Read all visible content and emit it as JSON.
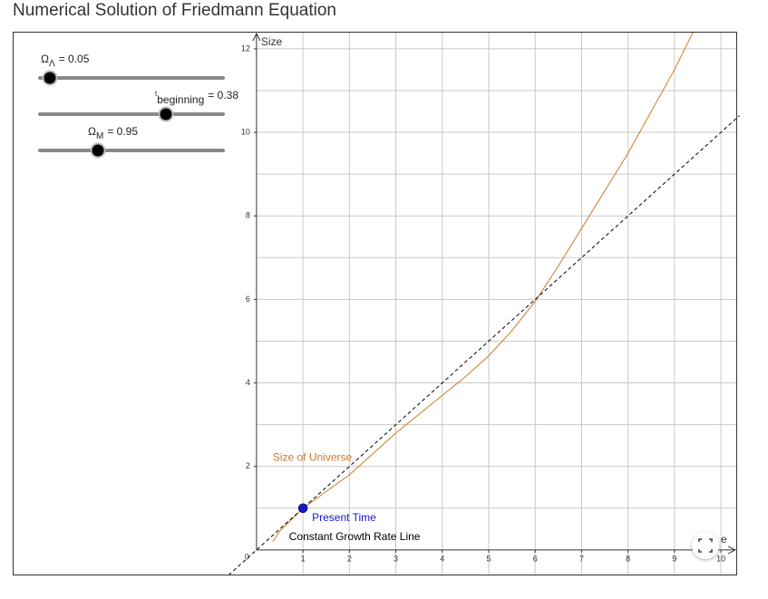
{
  "title": "Numerical Solution of Friedmann Equation",
  "sliders": [
    {
      "symbol": "Ω",
      "subscript": "Λ",
      "value_text": "= 0.05"
    },
    {
      "symbol": "t",
      "subscript": "beginning",
      "value_text": "= 0.38"
    },
    {
      "symbol": "Ω",
      "subscript": "M",
      "value_text": "= 0.95"
    }
  ],
  "chart_data": {
    "type": "line",
    "xlabel": "e",
    "ylabel": "Size",
    "origin_label": "0",
    "xlim": [
      -5.25,
      10.35
    ],
    "ylim": [
      -0.61,
      12.41
    ],
    "xticks": [
      1,
      2,
      3,
      4,
      5,
      6,
      7,
      8,
      9,
      10
    ],
    "yticks": [
      2,
      4,
      6,
      8,
      10,
      12
    ],
    "minor_yticks": [
      1,
      3,
      5,
      7,
      9,
      11
    ],
    "grid": true,
    "series": [
      {
        "name": "Size of Universe",
        "color": "#cc7a29",
        "dash": false,
        "x": [
          0.35,
          0.5,
          1,
          1.5,
          2,
          2.5,
          3,
          3.5,
          4,
          4.5,
          5,
          5.5,
          6,
          6.5,
          7,
          7.5,
          8,
          8.5,
          9,
          9.4
        ],
        "values": [
          0.2,
          0.45,
          1,
          1.4,
          1.8,
          2.3,
          2.8,
          3.25,
          3.7,
          4.15,
          4.65,
          5.25,
          5.95,
          6.8,
          7.7,
          8.6,
          9.5,
          10.5,
          11.5,
          12.4
        ],
        "label_at": [
          0.35,
          2.2
        ]
      },
      {
        "name": "Constant Growth Rate Line",
        "color": "#000000",
        "dash": true,
        "x": [
          -0.6,
          10.4
        ],
        "values": [
          -0.6,
          10.4
        ],
        "label_at": [
          0.7,
          0.3
        ]
      }
    ],
    "points": [
      {
        "name": "Present Time",
        "color": "#1515cc",
        "x": 1,
        "y": 1
      }
    ]
  }
}
